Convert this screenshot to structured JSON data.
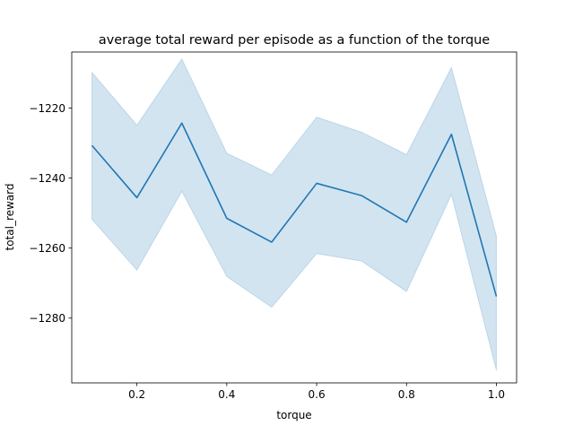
{
  "chart_data": {
    "type": "line",
    "title": "average total reward per episode as a function of the torque",
    "xlabel": "torque",
    "ylabel": "total_reward",
    "xlim": [
      0.055,
      1.045
    ],
    "ylim": [
      -1298.5,
      -1204.0
    ],
    "xticks": [
      0.2,
      0.4,
      0.6,
      0.8,
      1.0
    ],
    "xtick_labels": [
      "0.2",
      "0.4",
      "0.6",
      "0.8",
      "1.0"
    ],
    "yticks": [
      -1280,
      -1260,
      -1240,
      -1220
    ],
    "ytick_labels": [
      "−1280",
      "−1260",
      "−1240",
      "−1220"
    ],
    "grid": false,
    "series": [
      {
        "color": "#1f77b4",
        "x": [
          0.1,
          0.2,
          0.3,
          0.4,
          0.5,
          0.6,
          0.7,
          0.8,
          0.9,
          1.0
        ],
        "values": [
          -1230.7,
          -1245.6,
          -1224.3,
          -1251.5,
          -1258.3,
          -1241.5,
          -1245.0,
          -1252.6,
          -1227.5,
          -1273.8
        ],
        "band_lower": [
          -1251.8,
          -1266.3,
          -1243.8,
          -1268.1,
          -1276.9,
          -1261.6,
          -1263.7,
          -1272.4,
          -1244.7,
          -1294.9
        ],
        "band_upper": [
          -1209.8,
          -1224.9,
          -1206.0,
          -1232.9,
          -1239.1,
          -1222.6,
          -1226.9,
          -1233.3,
          -1208.4,
          -1256.5
        ]
      }
    ]
  }
}
